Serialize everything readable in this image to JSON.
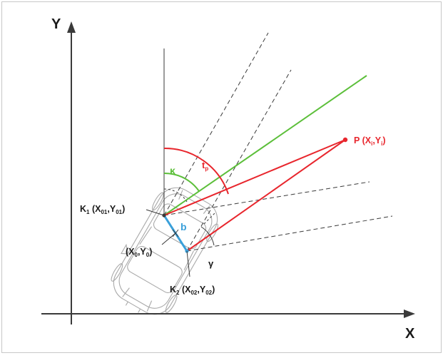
{
  "axes": {
    "x_label": "X",
    "y_label": "Y"
  },
  "labels": {
    "k1": {
      "main": "K",
      "idx": "1",
      "mid": " (X",
      "sub1": "01",
      "comma": ",Y",
      "sub2": "01",
      "end": ")"
    },
    "k2": {
      "main": "K",
      "idx": "2",
      "mid": " (X",
      "sub1": "02",
      "comma": ",Y",
      "sub2": "02",
      "end": ")"
    },
    "center": {
      "pre": "(X",
      "sub1": "0",
      "comma": ",Y",
      "sub2": "0",
      "end": ")"
    },
    "p": {
      "pre": "P (X",
      "sub1": "i",
      "comma": ",Y",
      "sub2": "i",
      "end": ")"
    },
    "baseline": "b",
    "kappa": "κ",
    "tp": {
      "main": "t",
      "sub": "p"
    },
    "gamma": "γ"
  },
  "colors": {
    "red": "#e8262d",
    "green": "#5cbf3a",
    "blue": "#3aa0da",
    "line": "#3a3a3a",
    "car": "#a9a9a9"
  }
}
